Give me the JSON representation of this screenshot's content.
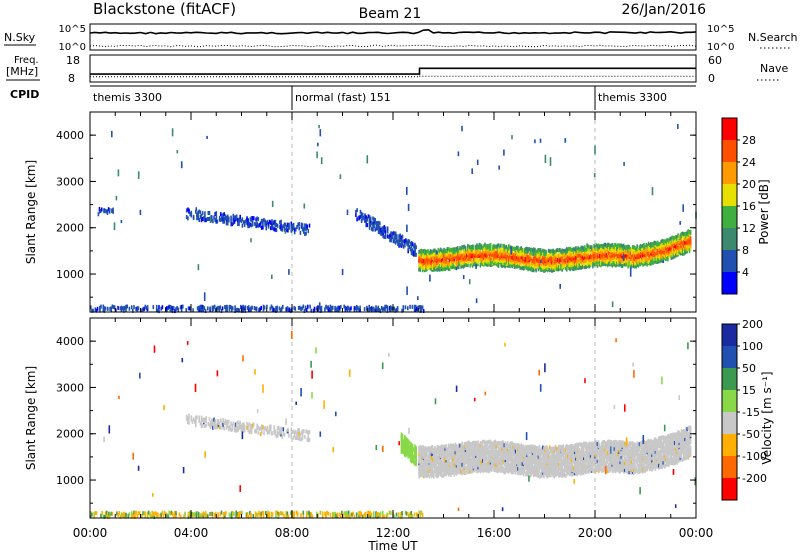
{
  "header": {
    "title": "Blackstone (fitACF)",
    "beam": "Beam 21",
    "date": "26/Jan/2016"
  },
  "noise_panel": {
    "left_label": "N.Sky",
    "right_label": "N.Search",
    "left_ticks": [
      "10^5",
      "10^0"
    ],
    "right_ticks": [
      "10^5",
      "10^0"
    ]
  },
  "freq_panel": {
    "left_label_1": "Freq.",
    "left_label_2": "[MHz]",
    "right_label": "Nave",
    "left_ticks": [
      "18",
      "8"
    ],
    "right_ticks": [
      "60",
      "0"
    ],
    "freq_before_mhz": 10.2,
    "freq_after_mhz": 13.4,
    "switch_hour": 13.05,
    "nave_before": 4,
    "nave_after": 6
  },
  "cpid": {
    "label": "CPID",
    "segments": [
      {
        "name": "themis 3300",
        "start_hour": 0,
        "end_hour": 8.0
      },
      {
        "name": "normal (fast) 151",
        "start_hour": 8.0,
        "end_hour": 20.0
      },
      {
        "name": "themis 3300",
        "start_hour": 20.0,
        "end_hour": 24.0
      }
    ]
  },
  "x_axis": {
    "label": "Time UT",
    "range_hours": [
      0,
      24
    ],
    "ticks": [
      {
        "hour": 0,
        "label": "00:00"
      },
      {
        "hour": 4,
        "label": "04:00"
      },
      {
        "hour": 8,
        "label": "08:00"
      },
      {
        "hour": 12,
        "label": "12:00"
      },
      {
        "hour": 16,
        "label": "16:00"
      },
      {
        "hour": 20,
        "label": "20:00"
      },
      {
        "hour": 24,
        "label": "00:00"
      }
    ]
  },
  "colors": {
    "power": [
      "#0000ff",
      "#2050b0",
      "#3c8a6e",
      "#3fb040",
      "#e6e000",
      "#ff9a00",
      "#ff5000",
      "#ff0000"
    ],
    "velocity": [
      "#ff0000",
      "#ff6a00",
      "#ffb000",
      "#c8c8c8",
      "#88d848",
      "#3c9a50",
      "#2050b0",
      "#1a2aa0"
    ],
    "ground_scatter": "#c0c0c0"
  },
  "chart_data": [
    {
      "type": "heatmap",
      "name": "power",
      "ylabel": "Slant Range [km]",
      "ylim": [
        180,
        4500
      ],
      "yticks": [
        "1000",
        "2000",
        "3000",
        "4000"
      ],
      "colorbar_label": "Power [dB]",
      "colorbar_range": [
        0,
        32
      ],
      "colorbar_ticks": [
        "4",
        "8",
        "12",
        "16",
        "20",
        "24",
        "28"
      ],
      "echo_bands": [
        {
          "start_hour": 0.3,
          "end_hour": 0.9,
          "center_km": 2350,
          "width_km": 120,
          "level": 1
        },
        {
          "start_hour": 3.8,
          "end_hour": 8.7,
          "center_km": 2300,
          "center_end_km": 1950,
          "width_km": 200,
          "level": 1
        },
        {
          "start_hour": 10.5,
          "end_hour": 12.9,
          "center_km": 2300,
          "center_end_km": 1500,
          "width_km": 250,
          "level": 1
        },
        {
          "start_hour": 13.0,
          "end_hour": 23.8,
          "center_km": 1350,
          "width_km": 450,
          "level": 5
        },
        {
          "start_hour": 0.0,
          "end_hour": 13.2,
          "center_km": 250,
          "width_km": 100,
          "level": 1
        }
      ]
    },
    {
      "type": "heatmap",
      "name": "velocity",
      "ylabel": "Slant Range [km]",
      "ylim": [
        180,
        4500
      ],
      "yticks": [
        "1000",
        "2000",
        "3000",
        "4000"
      ],
      "colorbar_label": "Velocity [m s⁻¹]",
      "colorbar_ticks": [
        "-200",
        "-100",
        "-50",
        "-15",
        "15",
        "50",
        "100",
        "200"
      ],
      "echo_bands": [
        {
          "start_hour": 3.8,
          "end_hour": 8.7,
          "center_km": 2300,
          "center_end_km": 1950,
          "width_km": 200,
          "level": 3
        },
        {
          "start_hour": 12.3,
          "end_hour": 12.9,
          "center_km": 1800,
          "center_end_km": 1500,
          "width_km": 400,
          "level": 4
        },
        {
          "start_hour": 13.0,
          "end_hour": 23.8,
          "center_km": 1450,
          "width_km": 650,
          "level": 3
        },
        {
          "start_hour": 0.0,
          "end_hour": 13.2,
          "center_km": 250,
          "width_km": 100,
          "level": 2
        }
      ]
    }
  ]
}
